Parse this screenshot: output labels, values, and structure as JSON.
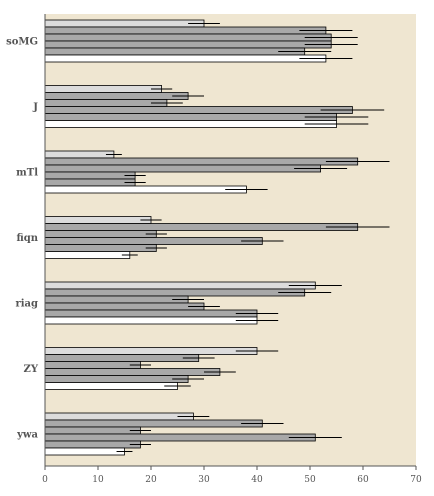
{
  "chart_data": {
    "type": "bar",
    "orientation": "horizontal",
    "categories": [
      "soMG",
      "J",
      "mTl",
      "fiqn",
      "riag",
      "ZY",
      "ywa"
    ],
    "xlim": [
      0,
      70
    ],
    "xticks": [
      0,
      10,
      20,
      30,
      40,
      50,
      60,
      70
    ],
    "grid": false,
    "legend": "none",
    "series": [
      {
        "color": "#dcdcdc",
        "values": [
          30,
          22,
          13,
          20,
          51,
          40,
          28
        ],
        "errors": [
          3,
          2,
          1.5,
          2,
          5,
          4,
          3
        ]
      },
      {
        "color": "#a8a8a8",
        "values": [
          53,
          27,
          59,
          59,
          49,
          29,
          41
        ],
        "errors": [
          5,
          3,
          6,
          6,
          5,
          3,
          4
        ]
      },
      {
        "color": "#a8a8a8",
        "values": [
          54,
          23,
          52,
          21,
          27,
          18,
          18
        ],
        "errors": [
          5,
          3,
          5,
          2,
          3,
          2,
          2
        ]
      },
      {
        "color": "#a8a8a8",
        "values": [
          54,
          58,
          17,
          41,
          30,
          33,
          51
        ],
        "errors": [
          5,
          6,
          2,
          4,
          3,
          3,
          5
        ]
      },
      {
        "color": "#a8a8a8",
        "values": [
          49,
          55,
          17,
          21,
          40,
          27,
          18
        ],
        "errors": [
          5,
          6,
          2,
          2,
          4,
          3,
          2
        ]
      },
      {
        "color": "#ffffff",
        "values": [
          53,
          55,
          38,
          16,
          40,
          25,
          15
        ],
        "errors": [
          5,
          6,
          4,
          1.5,
          4,
          2.5,
          1.5
        ]
      }
    ]
  },
  "style": {
    "background": "#efe6d1",
    "axis_color": "#555555",
    "bar_stroke": "#000000",
    "error_color": "#000000"
  }
}
